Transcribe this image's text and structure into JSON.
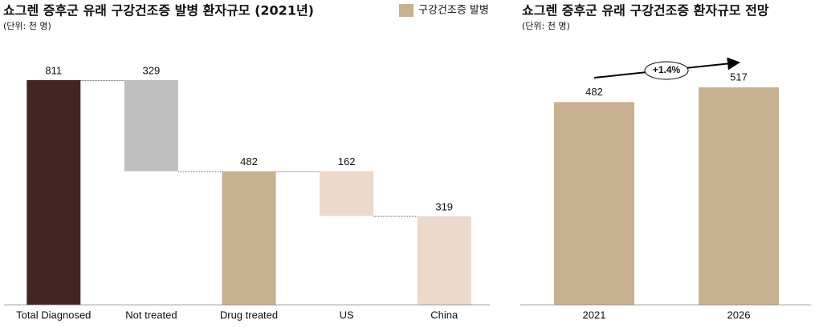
{
  "chart_data": [
    {
      "type": "waterfall",
      "title": "쇼그렌 증후군 유래 구강건조증 발병 환자규모 (2021년)",
      "subtitle": "(단위: 천 명)",
      "legend": {
        "name": "구강건조증 발병",
        "color": "#c8b190"
      },
      "categories": [
        "Total Diagnosed",
        "Not treated",
        "Drug treated",
        "US",
        "China"
      ],
      "values": [
        811,
        329,
        482,
        162,
        319
      ],
      "measure": [
        "total",
        "decrease",
        "total",
        "decrease",
        "total"
      ],
      "colors": [
        "#42261f",
        "#bfbfbf",
        "#c8b190",
        "#ecd9cb",
        "#ecd9cb"
      ]
    },
    {
      "type": "bar",
      "title": "쇼그렌 증후군 유래 구강건조증 환자규모 전망",
      "subtitle": "(단위: 천 명)",
      "categories": [
        "2021",
        "2026"
      ],
      "values": [
        482,
        517
      ],
      "color": "#c8b190",
      "annotation": "+1.4%"
    }
  ]
}
